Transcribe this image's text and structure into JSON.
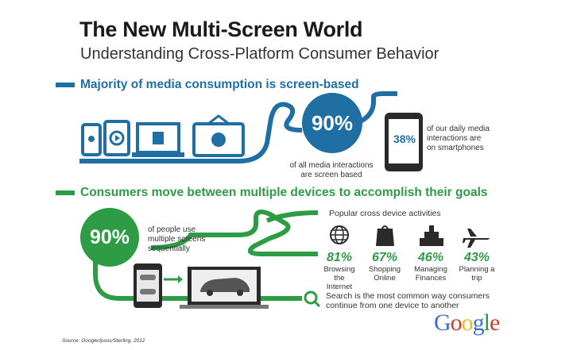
{
  "header": {
    "title": "The New Multi-Screen World",
    "subtitle": "Understanding Cross-Platform Consumer Behavior"
  },
  "section1": {
    "heading": "Majority of media consumption is screen-based",
    "big_stat": "90%",
    "big_stat_caption_1": "of all media interactions",
    "big_stat_caption_2": "are screen based",
    "phone_stat": "38%",
    "phone_caption_1": "of our daily media",
    "phone_caption_2": "interactions are",
    "phone_caption_3": "on smartphones",
    "colors": {
      "blue": "#1f6fa5",
      "dark": "#2a2a2a"
    }
  },
  "section2": {
    "heading": "Consumers move between multiple devices to accomplish their goals",
    "big_stat": "90%",
    "big_stat_caption_1": "of people use",
    "big_stat_caption_2": "multiple screens",
    "big_stat_caption_3": "sequentially",
    "activities_title": "Popular cross device activities",
    "activities": [
      {
        "icon": "globe-icon",
        "pct": "81%",
        "label_1": "Browsing",
        "label_2": "the Internet"
      },
      {
        "icon": "shopping-bag-icon",
        "pct": "67%",
        "label_1": "Shopping",
        "label_2": "Online"
      },
      {
        "icon": "finance-bars-icon",
        "pct": "46%",
        "label_1": "Managing",
        "label_2": "Finances"
      },
      {
        "icon": "airplane-icon",
        "pct": "43%",
        "label_1": "Planning a",
        "label_2": "trip"
      }
    ],
    "search_text_1": "Search is the most common way consumers",
    "search_text_2": "continue from one device to another",
    "colors": {
      "green": "#2e9b45"
    }
  },
  "footer": {
    "source": "Source: Google/Ipsos/Sterling, 2012",
    "logo": "Google"
  }
}
